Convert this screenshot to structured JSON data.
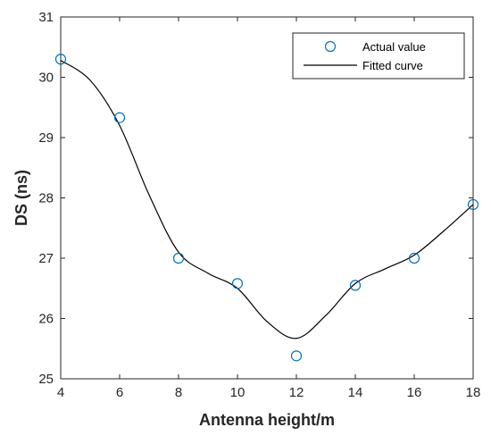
{
  "chart_data": {
    "type": "line",
    "xlabel": "Antenna height/m",
    "ylabel": "DS (ns)",
    "xlim": [
      4,
      18
    ],
    "ylim": [
      25,
      31
    ],
    "xticks": [
      "4",
      "6",
      "8",
      "10",
      "12",
      "14",
      "16",
      "18"
    ],
    "yticks": [
      "25",
      "26",
      "27",
      "28",
      "29",
      "30",
      "31"
    ],
    "grid": false,
    "legend_position": "top-right",
    "series": [
      {
        "name": "Actual value",
        "kind": "scatter",
        "marker": "circle",
        "color": "#0072BD",
        "x": [
          4,
          6,
          8,
          10,
          12,
          14,
          16,
          18
        ],
        "y": [
          30.3,
          29.33,
          27.0,
          26.58,
          25.38,
          26.55,
          27.0,
          27.89
        ]
      },
      {
        "name": "Fitted curve",
        "kind": "line",
        "color": "#000000",
        "x": [
          4,
          5,
          6,
          7,
          8,
          9,
          10,
          11,
          12,
          13,
          14,
          15,
          16,
          17,
          18
        ],
        "y": [
          30.28,
          29.95,
          29.2,
          28.05,
          27.1,
          26.75,
          26.5,
          25.95,
          25.67,
          26.05,
          26.58,
          26.82,
          27.05,
          27.45,
          27.89
        ]
      }
    ]
  }
}
